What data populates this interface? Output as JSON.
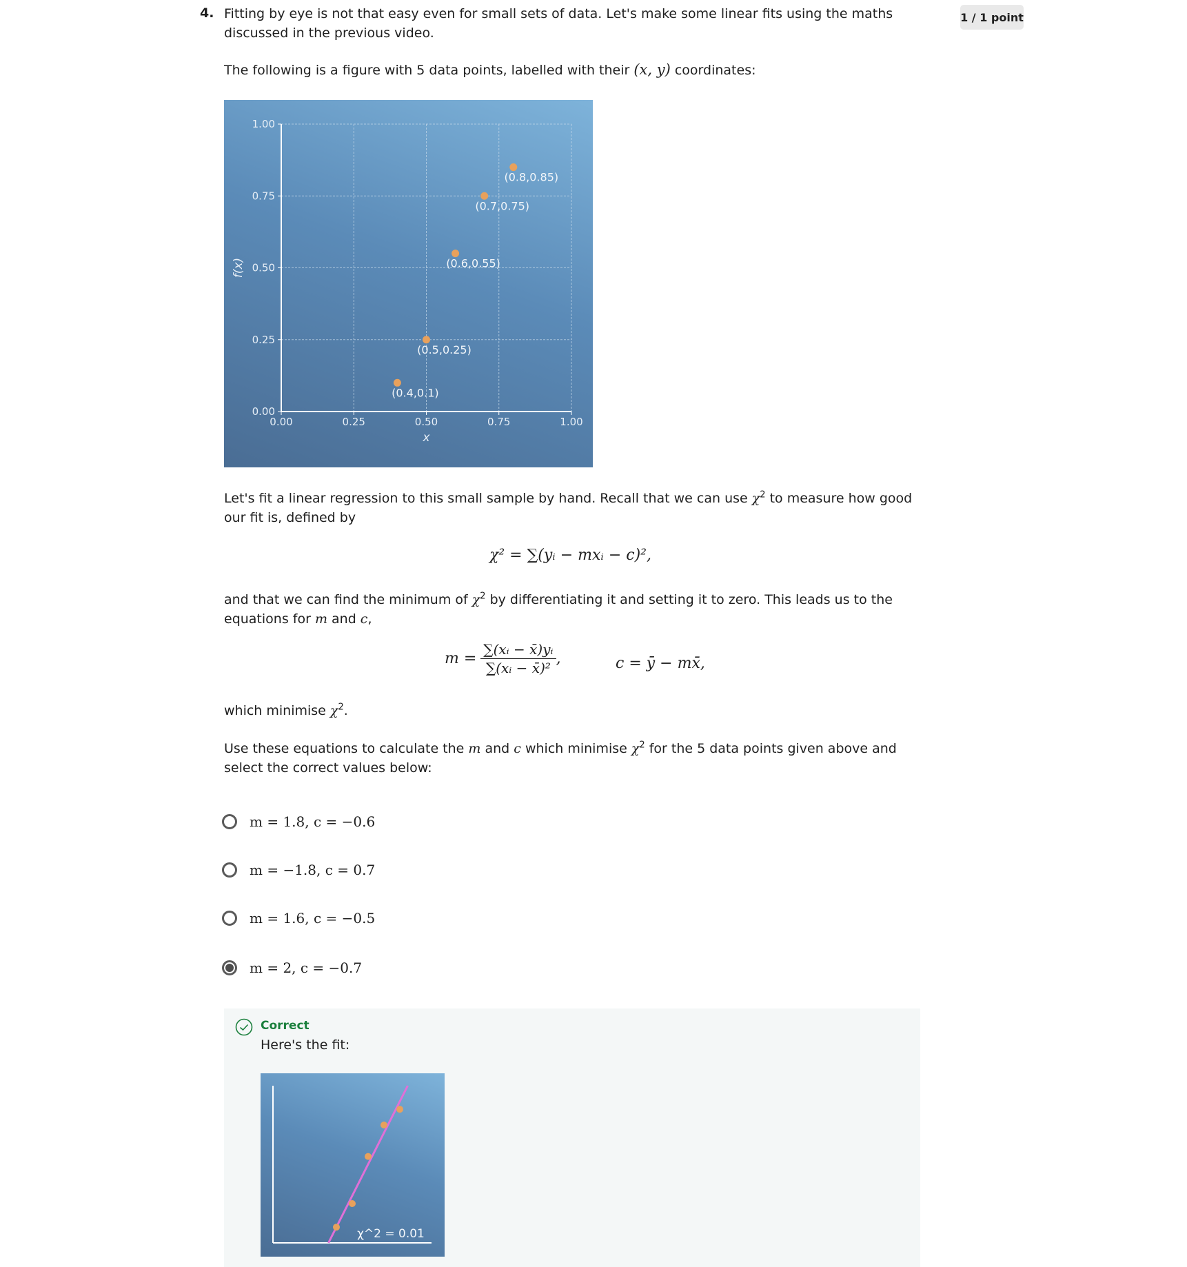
{
  "question": {
    "number": "4.",
    "points": "1 / 1 point",
    "intro": "Fitting by eye is not that easy even for small sets of data. Let's make some linear fits using the maths discussed in the previous video.",
    "figure_intro_before": "The following is a figure with 5 data points, labelled with their ",
    "figure_intro_math": "(x, y)",
    "figure_intro_after": " coordinates:",
    "para2_before": "Let's fit a linear regression to this small sample by hand. Recall that we can use ",
    "para2_after": " to measure how good our fit is, defined by",
    "chi": "χ",
    "sq": "2",
    "equation_chi": "χ² = ∑(yᵢ − mxᵢ − c)²,",
    "para3_before": "and that we can find the minimum of ",
    "para3_mid": " by differentiating it and setting it to zero. This leads us to the equations for ",
    "para3_m": "m",
    "para3_and": " and ",
    "para3_c": "c",
    "para3_end": ",",
    "eq_m_lhs": "m =",
    "eq_m_num": "∑(xᵢ − x̄)yᵢ",
    "eq_m_den": "∑(xᵢ − x̄)²",
    "eq_comma": ",",
    "eq_c": "c = ȳ − mx̄,",
    "para4_before": "which minimise ",
    "para4_after": ".",
    "para5_before": "Use these equations to calculate the ",
    "para5_m": "m",
    "para5_and": " and ",
    "para5_c": "c",
    "para5_mid": " which minimise ",
    "para5_after": " for the 5 data points given above and select the correct values below:"
  },
  "options": [
    {
      "label": "m = 1.8, c = −0.6",
      "selected": false
    },
    {
      "label": "m = −1.8, c = 0.7",
      "selected": false
    },
    {
      "label": "m = 1.6, c = −0.5",
      "selected": false
    },
    {
      "label": "m = 2, c = −0.7",
      "selected": true
    }
  ],
  "feedback": {
    "status": "Correct",
    "message": "Here's the fit:",
    "chi_label": "χ^2 = 0.01"
  },
  "colors": {
    "point": "#e8a15c",
    "fit_line": "#e070d8",
    "correct_green": "#1a7f3c"
  },
  "chart_data": [
    {
      "type": "scatter",
      "xlabel": "x",
      "ylabel": "f(x)",
      "xlim": [
        0,
        1
      ],
      "ylim": [
        0,
        1
      ],
      "xticks": [
        "0.00",
        "0.25",
        "0.50",
        "0.75",
        "1.00"
      ],
      "yticks": [
        "0.00",
        "0.25",
        "0.50",
        "0.75",
        "1.00"
      ],
      "grid": true,
      "points": [
        {
          "x": 0.4,
          "y": 0.1,
          "label": "(0.4,0.1)"
        },
        {
          "x": 0.5,
          "y": 0.25,
          "label": "(0.5,0.25)"
        },
        {
          "x": 0.6,
          "y": 0.55,
          "label": "(0.6,0.55)"
        },
        {
          "x": 0.7,
          "y": 0.75,
          "label": "(0.7,0.75)"
        },
        {
          "x": 0.8,
          "y": 0.85,
          "label": "(0.8,0.85)"
        }
      ]
    },
    {
      "type": "scatter",
      "xlim": [
        0,
        1
      ],
      "ylim": [
        0,
        1
      ],
      "annotation": "χ^2 = 0.01",
      "fit_line": {
        "m": 2,
        "c": -0.7
      },
      "points": [
        {
          "x": 0.4,
          "y": 0.1
        },
        {
          "x": 0.5,
          "y": 0.25
        },
        {
          "x": 0.6,
          "y": 0.55
        },
        {
          "x": 0.7,
          "y": 0.75
        },
        {
          "x": 0.8,
          "y": 0.85
        }
      ]
    }
  ]
}
